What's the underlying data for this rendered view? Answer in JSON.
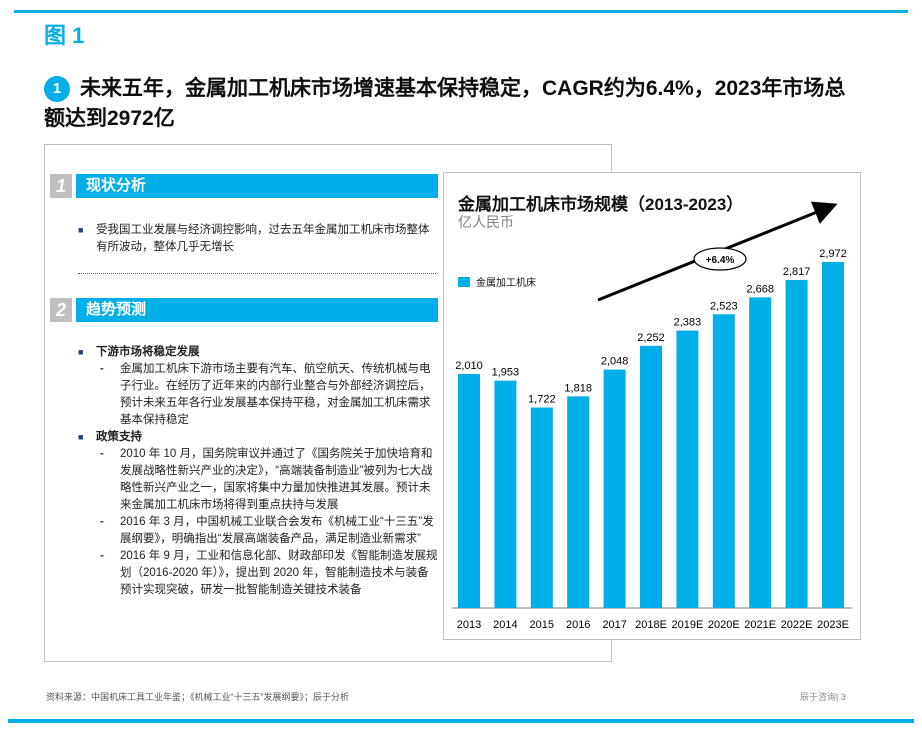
{
  "figure_label": "图 1",
  "headline": {
    "number": "1",
    "text": "未来五年，金属加工机床市场增速基本保持稳定，CAGR约为6.4%，2023年市场总额达到2972亿"
  },
  "section1": {
    "number": "1",
    "title": "现状分析",
    "bullets": [
      "受我国工业发展与经济调控影响，过去五年金属加工机床市场整体有所波动，整体几乎无增长"
    ]
  },
  "section2": {
    "number": "2",
    "title": "趋势预测",
    "groups": [
      {
        "title": "下游市场将稳定发展",
        "items": [
          "金属加工机床下游市场主要有汽车、航空航天、传统机械与电子行业。在经历了近年来的内部行业整合与外部经济调控后，预计未来五年各行业发展基本保持平稳，对金属加工机床需求基本保持稳定"
        ]
      },
      {
        "title": "政策支持",
        "items": [
          "2010 年 10 月，国务院审议并通过了《国务院关于加快培育和发展战略性新兴产业的决定》，“高端装备制造业”被列为七大战略性新兴产业之一，国家将集中力量加快推进其发展。预计未来金属加工机床市场将得到重点扶持与发展",
          "2016 年 3 月，中国机械工业联合会发布《机械工业“十三五”发展纲要》，明确指出“发展高端装备产品，满足制造业新需求”",
          "2016 年 9 月，工业和信息化部、财政部印发《智能制造发展规划（2016-2020 年）》，提出到 2020 年，智能制造技术与装备预计实现突破，研发一批智能制造关键技术装备"
        ]
      }
    ]
  },
  "footer": {
    "source": "资料来源：中国机床工具工业年鉴；《机械工业“十三五”发展纲要》；辰于分析",
    "brand": "辰于咨询|",
    "page": "3"
  },
  "chart_data": {
    "type": "bar",
    "title": "金属加工机床市场规模（2013-2023）",
    "ylabel": "亿人民币",
    "legend": [
      "金属加工机床"
    ],
    "legend_position": "top-left",
    "annotation": "+6.4%",
    "categories": [
      "2013",
      "2014",
      "2015",
      "2016",
      "2017",
      "2018E",
      "2019E",
      "2020E",
      "2021E",
      "2022E",
      "2023E"
    ],
    "values": [
      2010,
      1953,
      1722,
      1818,
      2048,
      2252,
      2383,
      2523,
      2668,
      2817,
      2972
    ],
    "labels": [
      "2,010",
      "1,953",
      "1,722",
      "1,818",
      "2,048",
      "2,252",
      "2,383",
      "2,523",
      "2,668",
      "2,817",
      "2,972"
    ],
    "ylim": [
      0,
      3000
    ],
    "color": "#00aee8"
  }
}
